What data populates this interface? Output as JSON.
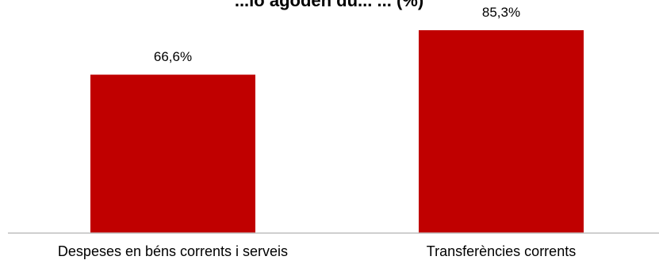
{
  "chart_data": {
    "type": "bar",
    "title": "...ió agoden du... ... (%)",
    "categories": [
      "Despeses en béns corrents i serveis",
      "Transferències corrents"
    ],
    "values": [
      66.6,
      85.3
    ],
    "data_labels": [
      "66,6%",
      "85,3%"
    ],
    "xlabel": "",
    "ylabel": "",
    "ylim": [
      0,
      100
    ],
    "grid": false,
    "legend": "none",
    "bar_color": "#c00000"
  }
}
